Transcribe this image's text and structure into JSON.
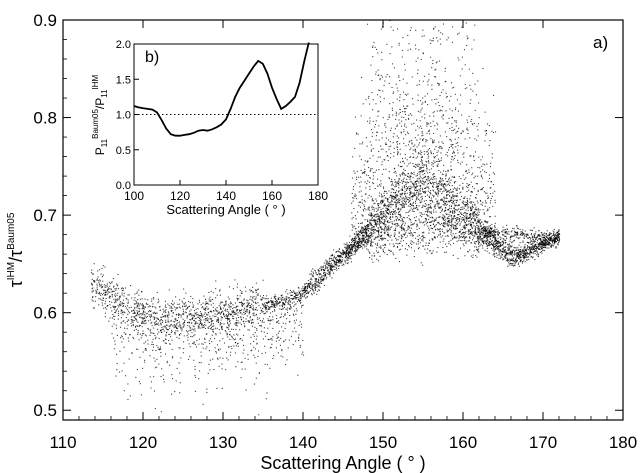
{
  "chart_data": [
    {
      "type": "scatter",
      "panel_label": "a)",
      "xlabel": "Scattering Angle ( ° )",
      "ylabel_main": "τ",
      "ylabel_sup1": "IHM",
      "ylabel_mid": "/τ",
      "ylabel_sup2": "Baum05",
      "xlim": [
        110,
        180
      ],
      "ylim": [
        0.49,
        0.9
      ],
      "x_ticks": [
        "110",
        "120",
        "130",
        "140",
        "150",
        "160",
        "170",
        "180"
      ],
      "y_ticks": [
        "0.5",
        "0.6",
        "0.7",
        "0.8",
        "0.9"
      ],
      "point_color": "#000000",
      "band_trends": [
        {
          "x": [
            113.5,
            118,
            122,
            126,
            130,
            134,
            138,
            141,
            144,
            147,
            150,
            153,
            155,
            157,
            159,
            161,
            163,
            165,
            167,
            169,
            172
          ],
          "y": [
            0.628,
            0.61,
            0.595,
            0.598,
            0.602,
            0.607,
            0.613,
            0.625,
            0.65,
            0.68,
            0.705,
            0.725,
            0.735,
            0.728,
            0.71,
            0.695,
            0.683,
            0.668,
            0.66,
            0.668,
            0.68
          ]
        },
        {
          "x": [
            140,
            143,
            146,
            149,
            152,
            155,
            158,
            161,
            164,
            167,
            170,
            172
          ],
          "y": [
            0.625,
            0.65,
            0.668,
            0.678,
            0.682,
            0.684,
            0.685,
            0.684,
            0.683,
            0.68,
            0.676,
            0.675
          ]
        },
        {
          "x": [
            145,
            148,
            151,
            154,
            157,
            160,
            163,
            166,
            169,
            172
          ],
          "y": [
            0.655,
            0.68,
            0.705,
            0.718,
            0.708,
            0.692,
            0.672,
            0.655,
            0.665,
            0.68
          ]
        }
      ]
    },
    {
      "type": "line",
      "panel_label": "b)",
      "xlabel": "Scattering Angle ( ° )",
      "ylabel_main": "P",
      "ylabel_sub1": "11",
      "ylabel_sup1": "Baum05",
      "ylabel_mid": "/P",
      "ylabel_sub2": "11",
      "ylabel_sup2": "IHM",
      "xlim": [
        100,
        180
      ],
      "ylim": [
        0,
        2.0
      ],
      "x_ticks": [
        "100",
        "120",
        "140",
        "160",
        "180"
      ],
      "y_ticks": [
        "0.0",
        "0.5",
        "1.0",
        "1.5",
        "2.0"
      ],
      "reference_line": 1.0,
      "x": [
        100,
        102,
        104,
        106,
        108,
        110,
        112,
        114,
        116,
        118,
        120,
        122,
        124,
        126,
        128,
        130,
        132,
        134,
        136,
        138,
        140,
        142,
        144,
        146,
        148,
        150,
        152,
        154,
        156,
        158,
        160,
        162,
        164,
        166,
        168,
        170,
        172,
        174,
        176
      ],
      "y": [
        1.12,
        1.1,
        1.09,
        1.08,
        1.07,
        1.03,
        0.92,
        0.8,
        0.72,
        0.7,
        0.7,
        0.71,
        0.72,
        0.74,
        0.77,
        0.78,
        0.77,
        0.79,
        0.82,
        0.86,
        0.93,
        1.08,
        1.25,
        1.38,
        1.48,
        1.58,
        1.68,
        1.76,
        1.72,
        1.58,
        1.38,
        1.22,
        1.08,
        1.12,
        1.18,
        1.25,
        1.45,
        1.75,
        2.05
      ]
    }
  ]
}
